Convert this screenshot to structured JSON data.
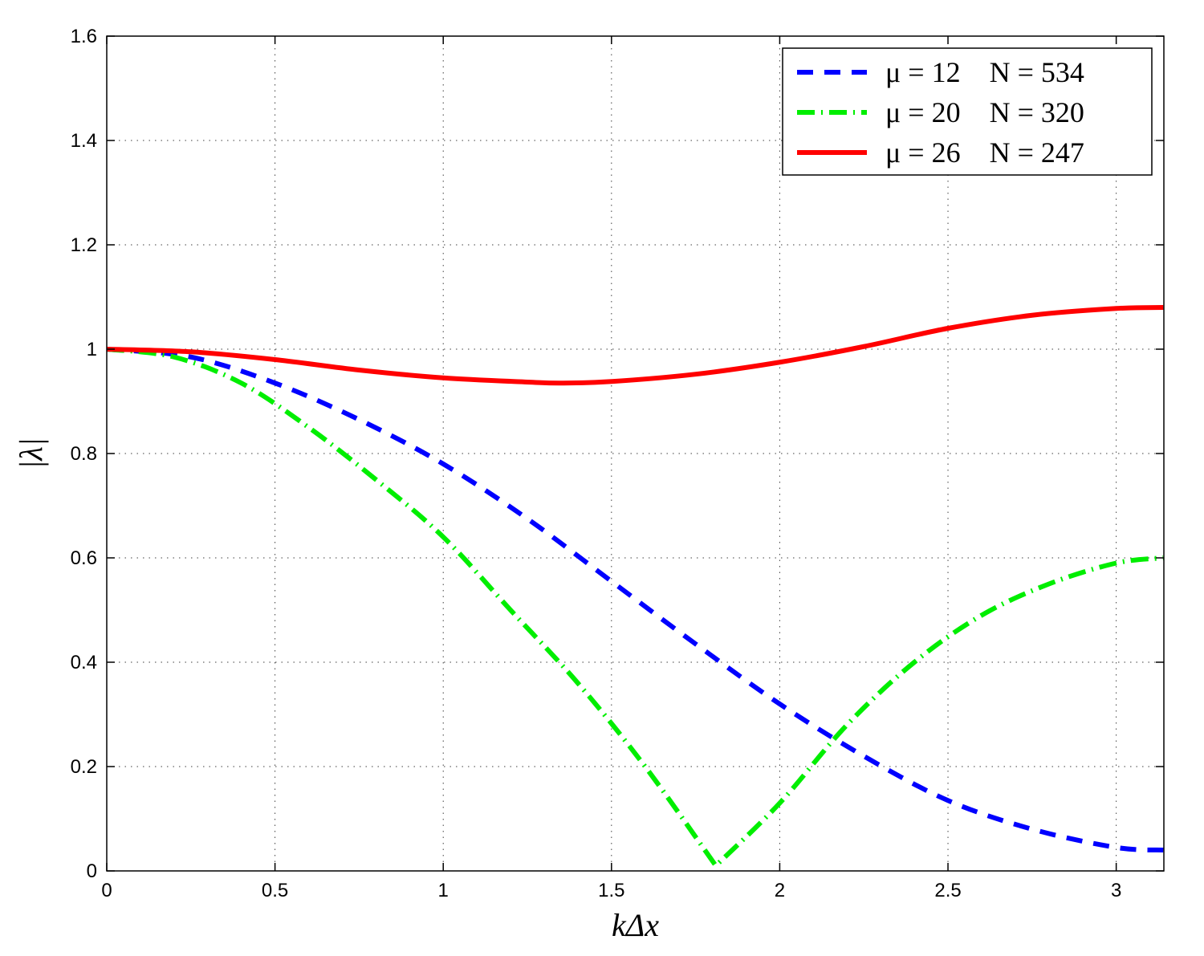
{
  "chart_data": {
    "type": "line",
    "xlabel": "kΔx",
    "ylabel": "|λ|",
    "xlim": [
      0,
      3.14159
    ],
    "ylim": [
      0,
      1.6
    ],
    "xticks": [
      "0",
      "0.5",
      "1",
      "1.5",
      "2",
      "2.5",
      "3"
    ],
    "yticks": [
      "0",
      "0.2",
      "0.4",
      "0.6",
      "0.8",
      "1",
      "1.2",
      "1.4",
      "1.6"
    ],
    "grid": true,
    "legend_position": "top-right",
    "series": [
      {
        "name": "μ = 12    N = 534",
        "color": "#0000ff",
        "style": "dashed",
        "x": [
          0,
          0.25,
          0.5,
          0.75,
          1.0,
          1.25,
          1.5,
          1.75,
          2.0,
          2.25,
          2.5,
          2.75,
          3.0,
          3.14
        ],
        "y": [
          1.0,
          0.985,
          0.935,
          0.865,
          0.78,
          0.675,
          0.555,
          0.435,
          0.32,
          0.22,
          0.135,
          0.08,
          0.045,
          0.04
        ]
      },
      {
        "name": "μ = 20    N = 320",
        "color": "#00ee00",
        "style": "dashdot",
        "x": [
          0,
          0.2,
          0.4,
          0.6,
          0.8,
          1.0,
          1.2,
          1.4,
          1.6,
          1.81,
          2.0,
          2.2,
          2.4,
          2.6,
          2.8,
          3.0,
          3.14
        ],
        "y": [
          1.0,
          0.985,
          0.935,
          0.85,
          0.75,
          0.64,
          0.5,
          0.36,
          0.2,
          0.01,
          0.13,
          0.28,
          0.4,
          0.49,
          0.55,
          0.59,
          0.6
        ]
      },
      {
        "name": "μ = 26    N = 247",
        "color": "#ff0000",
        "style": "solid",
        "x": [
          0,
          0.25,
          0.5,
          0.75,
          1.0,
          1.25,
          1.35,
          1.5,
          1.75,
          2.0,
          2.25,
          2.5,
          2.75,
          3.0,
          3.14
        ],
        "y": [
          1.0,
          0.995,
          0.98,
          0.96,
          0.945,
          0.937,
          0.935,
          0.938,
          0.952,
          0.975,
          1.005,
          1.04,
          1.065,
          1.078,
          1.08
        ]
      }
    ]
  }
}
